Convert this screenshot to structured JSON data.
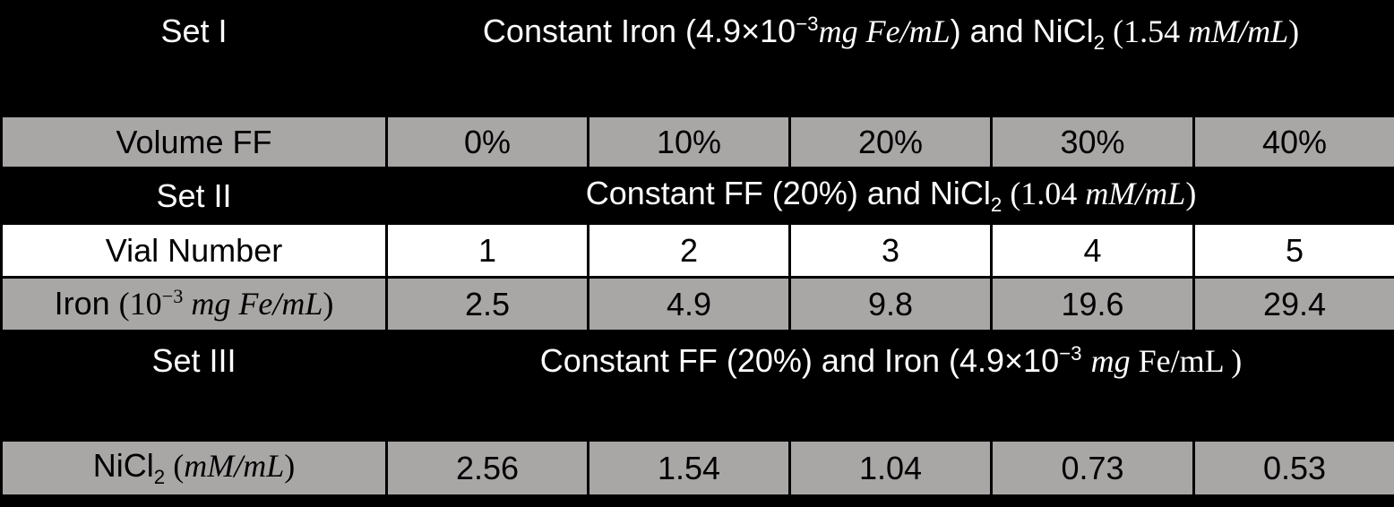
{
  "colors": {
    "background": "#000000",
    "row_dark_bg": "#000000",
    "row_gray_bg": "#a9a6a6",
    "row_white_bg": "#ffffff",
    "text_on_dark": "#ffffff",
    "text_on_light": "#000000",
    "cell_border": "#000000"
  },
  "table": {
    "set1": {
      "label": "Set I",
      "description": [
        {
          "t": "Constant Iron (4.9×10",
          "c": "s"
        },
        {
          "t": "−3",
          "c": "s-sup"
        },
        {
          "t": "mg Fe/mL",
          "c": "i"
        },
        {
          "t": ") and NiCl",
          "c": "s"
        },
        {
          "t": "2",
          "c": "s-sub"
        },
        {
          "t": " (1.54 ",
          "c": "r"
        },
        {
          "t": "mM/mL",
          "c": "i"
        },
        {
          "t": ")",
          "c": "r"
        }
      ]
    },
    "volume_row": {
      "label": "Volume FF",
      "values": [
        "0%",
        "10%",
        "20%",
        "30%",
        "40%"
      ]
    },
    "set2": {
      "label": "Set II",
      "description": [
        {
          "t": "Constant FF (20%) and NiCl",
          "c": "s"
        },
        {
          "t": "2",
          "c": "s-sub"
        },
        {
          "t": " (1.04 ",
          "c": "r"
        },
        {
          "t": "mM/mL",
          "c": "i"
        },
        {
          "t": ")",
          "c": "r"
        }
      ]
    },
    "vial_row": {
      "label": "Vial Number",
      "values": [
        "1",
        "2",
        "3",
        "4",
        "5"
      ]
    },
    "iron_row": {
      "label": [
        {
          "t": "Iron ",
          "c": "s"
        },
        {
          "t": "(10",
          "c": "r"
        },
        {
          "t": "−3",
          "c": "r-sup"
        },
        {
          "t": " ",
          "c": "r"
        },
        {
          "t": "mg Fe/mL",
          "c": "i"
        },
        {
          "t": ")",
          "c": "r"
        }
      ],
      "values": [
        "2.5",
        "4.9",
        "9.8",
        "19.6",
        "29.4"
      ]
    },
    "set3": {
      "label": "Set III",
      "description": [
        {
          "t": "Constant FF (20%) and Iron (4.9×10",
          "c": "s"
        },
        {
          "t": "−3",
          "c": "s-sup"
        },
        {
          "t": " ",
          "c": "s"
        },
        {
          "t": "mg",
          "c": "i"
        },
        {
          "t": " Fe/mL )",
          "c": "r"
        }
      ]
    },
    "nicl2_row": {
      "label": [
        {
          "t": "NiCl",
          "c": "s"
        },
        {
          "t": "2",
          "c": "s-sub"
        },
        {
          "t": " (",
          "c": "r"
        },
        {
          "t": "mM/mL",
          "c": "i"
        },
        {
          "t": ")",
          "c": "r"
        }
      ],
      "values": [
        "2.56",
        "1.54",
        "1.04",
        "0.73",
        "0.53"
      ]
    }
  }
}
